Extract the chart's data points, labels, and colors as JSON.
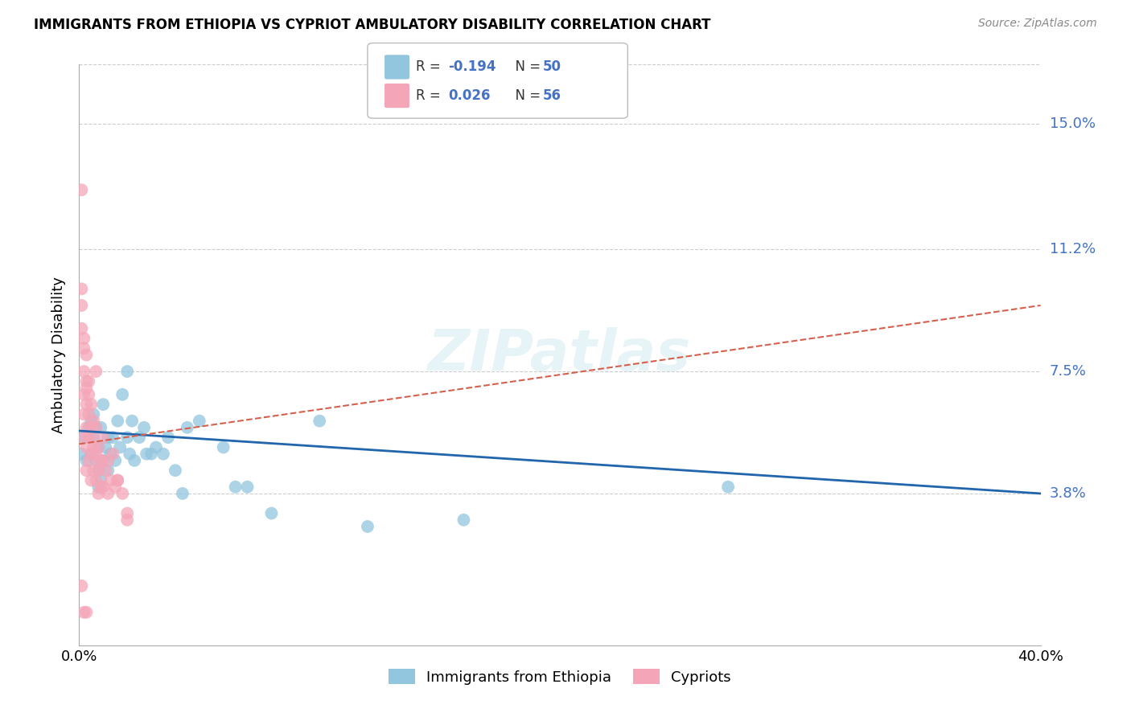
{
  "title": "IMMIGRANTS FROM ETHIOPIA VS CYPRIOT AMBULATORY DISABILITY CORRELATION CHART",
  "source": "Source: ZipAtlas.com",
  "ylabel": "Ambulatory Disability",
  "ytick_labels": [
    "15.0%",
    "11.2%",
    "7.5%",
    "3.8%"
  ],
  "ytick_values": [
    0.15,
    0.112,
    0.075,
    0.038
  ],
  "xlim": [
    0.0,
    0.4
  ],
  "ylim": [
    -0.008,
    0.168
  ],
  "legend1_label": "Immigrants from Ethiopia",
  "legend2_label": "Cypriots",
  "R1": -0.194,
  "N1": 50,
  "R2": 0.026,
  "N2": 56,
  "color_blue": "#92C5DE",
  "color_pink": "#F4A6B8",
  "color_blue_dark": "#2166AC",
  "color_pink_dark": "#D6604D",
  "watermark": "ZIPatlas",
  "ethiopia_x": [
    0.001,
    0.002,
    0.003,
    0.004,
    0.005,
    0.005,
    0.006,
    0.006,
    0.007,
    0.007,
    0.008,
    0.008,
    0.008,
    0.009,
    0.009,
    0.01,
    0.01,
    0.011,
    0.012,
    0.012,
    0.013,
    0.014,
    0.015,
    0.016,
    0.017,
    0.018,
    0.02,
    0.021,
    0.022,
    0.023,
    0.025,
    0.027,
    0.028,
    0.03,
    0.032,
    0.035,
    0.037,
    0.04,
    0.043,
    0.045,
    0.05,
    0.06,
    0.065,
    0.07,
    0.08,
    0.1,
    0.12,
    0.16,
    0.27,
    0.02
  ],
  "ethiopia_y": [
    0.05,
    0.055,
    0.048,
    0.058,
    0.06,
    0.05,
    0.062,
    0.055,
    0.048,
    0.058,
    0.052,
    0.045,
    0.04,
    0.058,
    0.042,
    0.065,
    0.048,
    0.052,
    0.055,
    0.045,
    0.05,
    0.055,
    0.048,
    0.06,
    0.052,
    0.068,
    0.055,
    0.05,
    0.06,
    0.048,
    0.055,
    0.058,
    0.05,
    0.05,
    0.052,
    0.05,
    0.055,
    0.045,
    0.038,
    0.058,
    0.06,
    0.052,
    0.04,
    0.04,
    0.032,
    0.06,
    0.028,
    0.03,
    0.04,
    0.075
  ],
  "ethiopia_line_x": [
    0.0,
    0.4
  ],
  "ethiopia_line_y": [
    0.057,
    0.038
  ],
  "cypriot_x": [
    0.001,
    0.001,
    0.001,
    0.002,
    0.002,
    0.002,
    0.002,
    0.002,
    0.003,
    0.003,
    0.003,
    0.003,
    0.003,
    0.003,
    0.004,
    0.004,
    0.004,
    0.004,
    0.005,
    0.005,
    0.005,
    0.005,
    0.006,
    0.006,
    0.006,
    0.007,
    0.007,
    0.007,
    0.008,
    0.008,
    0.008,
    0.009,
    0.009,
    0.01,
    0.01,
    0.011,
    0.012,
    0.013,
    0.014,
    0.015,
    0.016,
    0.018,
    0.02,
    0.001,
    0.002,
    0.003,
    0.004,
    0.005,
    0.007,
    0.009,
    0.012,
    0.016,
    0.02,
    0.001,
    0.002,
    0.003
  ],
  "cypriot_y": [
    0.13,
    0.095,
    0.088,
    0.082,
    0.075,
    0.068,
    0.062,
    0.055,
    0.08,
    0.072,
    0.065,
    0.058,
    0.052,
    0.045,
    0.068,
    0.062,
    0.055,
    0.048,
    0.065,
    0.058,
    0.05,
    0.042,
    0.06,
    0.052,
    0.045,
    0.058,
    0.05,
    0.042,
    0.052,
    0.045,
    0.038,
    0.048,
    0.04,
    0.055,
    0.04,
    0.045,
    0.038,
    0.042,
    0.05,
    0.04,
    0.042,
    0.038,
    0.032,
    0.1,
    0.085,
    0.07,
    0.072,
    0.055,
    0.075,
    0.048,
    0.048,
    0.042,
    0.03,
    0.01,
    0.002,
    0.002
  ],
  "cypriot_line_x": [
    0.0,
    0.4
  ],
  "cypriot_line_y": [
    0.053,
    0.095
  ]
}
